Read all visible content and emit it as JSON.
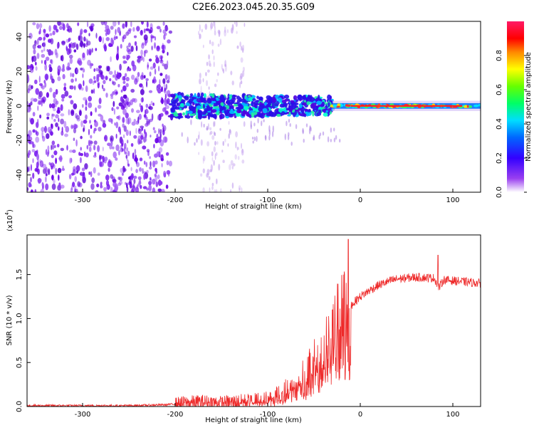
{
  "page_title": "C2E6.2023.045.20.35.G09",
  "chart_data": [
    {
      "type": "heatmap",
      "title": "C2E6.2023.045.20.35.G09",
      "xlabel": "Height of straight line (km)",
      "ylabel": "Frequency (Hz)",
      "xlim": [
        -360,
        130
      ],
      "ylim": [
        -50,
        49
      ],
      "xticks": [
        -300,
        -200,
        -100,
        0,
        100
      ],
      "yticks": [
        -40,
        -20,
        0,
        20,
        40
      ],
      "colorbar": {
        "label": "Normalized spectral amplitude",
        "range": [
          0,
          1
        ],
        "ticks": [
          "0.0",
          "0.2",
          "0.4",
          "0.6",
          "0.8"
        ],
        "colors": [
          "#ffffff",
          "#8a2be2",
          "#0000ff",
          "#00ffff",
          "#00ff00",
          "#ffff00",
          "#ff0000",
          "#ff0080"
        ]
      },
      "regions": [
        {
          "x": [
            -360,
            -205
          ],
          "y": [
            -50,
            49
          ],
          "description_value": 0.25
        },
        {
          "x": [
            -205,
            -30
          ],
          "y": [
            -8,
            8
          ],
          "description_value": 0.45
        },
        {
          "x": [
            -30,
            130
          ],
          "y": [
            -2,
            2
          ],
          "description_value": 0.9
        }
      ]
    },
    {
      "type": "line",
      "xlabel": "Height of straight line (km)",
      "ylabel": "SNR (10 * v/v)",
      "yunit": "(x10",
      "yunit_exp": "4",
      "yunit_close": ")",
      "xlim": [
        -360,
        130
      ],
      "ylim": [
        0,
        1.95
      ],
      "xticks": [
        -300,
        -200,
        -100,
        0,
        100
      ],
      "yticks": [
        "0.0",
        "0.5",
        "1.0",
        "1.5"
      ],
      "line_color": "#ee2a2a",
      "series": [
        {
          "x": [
            -360,
            -300,
            -250,
            -210,
            -190,
            -170,
            -150,
            -120,
            -100,
            -90,
            -80,
            -70,
            -60,
            -50,
            -40,
            -30,
            -20,
            -15,
            -12,
            -10,
            0,
            10,
            20,
            30,
            40,
            60,
            80,
            85,
            90,
            100,
            110,
            120,
            130
          ],
          "values": [
            0.01,
            0.01,
            0.01,
            0.02,
            0.04,
            0.05,
            0.04,
            0.06,
            0.08,
            0.12,
            0.18,
            0.25,
            0.35,
            0.45,
            0.6,
            0.8,
            0.95,
            1.05,
            1.1,
            1.15,
            1.25,
            1.32,
            1.38,
            1.42,
            1.45,
            1.47,
            1.46,
            1.35,
            1.44,
            1.43,
            1.42,
            1.41,
            1.4
          ]
        }
      ],
      "spikes": [
        {
          "x": -13,
          "value": 1.9
        },
        {
          "x": 84,
          "value": 1.72
        }
      ]
    }
  ]
}
